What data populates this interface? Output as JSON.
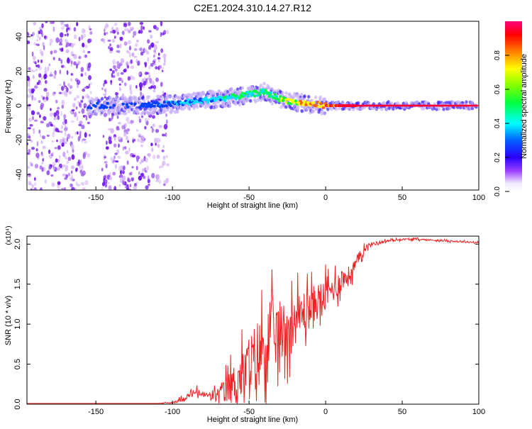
{
  "title": "C2E1.2024.310.14.27.R12",
  "spectrogram": {
    "xlabel": "Height of straight line (km)",
    "ylabel": "Frequency (Hz)",
    "xlim": [
      -195,
      100
    ],
    "ylim": [
      -49,
      49
    ],
    "xticks": [
      -150,
      -100,
      -50,
      0,
      50,
      100
    ],
    "yticks": [
      -40,
      -20,
      0,
      20,
      40
    ],
    "colorbar": {
      "label": "Normalized spectral amplitude",
      "range": [
        0,
        1
      ],
      "ticks": [
        "0.0",
        "0.2",
        "0.4",
        "0.6",
        "0.8"
      ],
      "colors": [
        "#ffffff",
        "#7f00ff",
        "#0000ff",
        "#00ffff",
        "#00ff00",
        "#ffff00",
        "#ff8000",
        "#ff0000",
        "#ff0080"
      ]
    }
  },
  "chart_data": [
    {
      "type": "heatmap",
      "title": "C2E1.2024.310.14.27.R12",
      "xlabel": "Height of straight line (km)",
      "ylabel": "Frequency (Hz)",
      "xlim": [
        -195,
        100
      ],
      "ylim": [
        -49,
        49
      ],
      "colorbar_label": "Normalized spectral amplitude",
      "description_points": {
        "noise_region_x": [
          -195,
          -103
        ],
        "signal_ridge": {
          "x": [
            -120,
            -100,
            -80,
            -60,
            -40,
            -30,
            -20,
            -10,
            0,
            20,
            50,
            100
          ],
          "freq": [
            0,
            1,
            3,
            5,
            8,
            4,
            2,
            1,
            0,
            0,
            0,
            0
          ],
          "amplitude": [
            0.3,
            0.35,
            0.4,
            0.45,
            0.5,
            0.55,
            0.6,
            0.75,
            0.85,
            0.95,
            0.95,
            0.9
          ]
        }
      }
    },
    {
      "type": "line",
      "xlabel": "Height of straight line (km)",
      "ylabel": "SNR (10 * v/v)",
      "y_multiplier": "(x10⁴)",
      "xlim": [
        -195,
        100
      ],
      "ylim": [
        0,
        2.1
      ],
      "xticks": [
        -150,
        -100,
        -50,
        0,
        50,
        100
      ],
      "yticks": [
        "0.0",
        "0.5",
        "1.0",
        "1.5",
        "2.0"
      ],
      "color": "#ee2222",
      "series": [
        {
          "x": [
            -195,
            -150,
            -110,
            -100,
            -95,
            -90,
            -85,
            -80,
            -75,
            -70,
            -65,
            -60,
            -55,
            -50,
            -45,
            -40,
            -35,
            -30,
            -25,
            -20,
            -15,
            -10,
            -5,
            0,
            5,
            10,
            15,
            20,
            25,
            30,
            40,
            50,
            60,
            70,
            80,
            90,
            100
          ],
          "y": [
            0.01,
            0.01,
            0.01,
            0.02,
            0.05,
            0.1,
            0.15,
            0.12,
            0.1,
            0.12,
            0.18,
            0.25,
            0.35,
            0.45,
            0.6,
            0.75,
            0.85,
            0.9,
            0.95,
            1.05,
            1.15,
            1.2,
            1.3,
            1.35,
            1.45,
            1.55,
            1.6,
            1.75,
            1.95,
            2.0,
            2.04,
            2.06,
            2.06,
            2.05,
            2.04,
            2.03,
            2.02
          ],
          "noise_amplitude": [
            0.0,
            0.0,
            0.0,
            0.02,
            0.05,
            0.08,
            0.1,
            0.08,
            0.1,
            0.2,
            0.35,
            0.5,
            0.6,
            0.8,
            0.9,
            0.9,
            0.85,
            0.8,
            0.7,
            0.6,
            0.55,
            0.5,
            0.45,
            0.4,
            0.35,
            0.3,
            0.25,
            0.2,
            0.1,
            0.05,
            0.03,
            0.02,
            0.02,
            0.02,
            0.02,
            0.02,
            0.02
          ]
        }
      ]
    }
  ]
}
